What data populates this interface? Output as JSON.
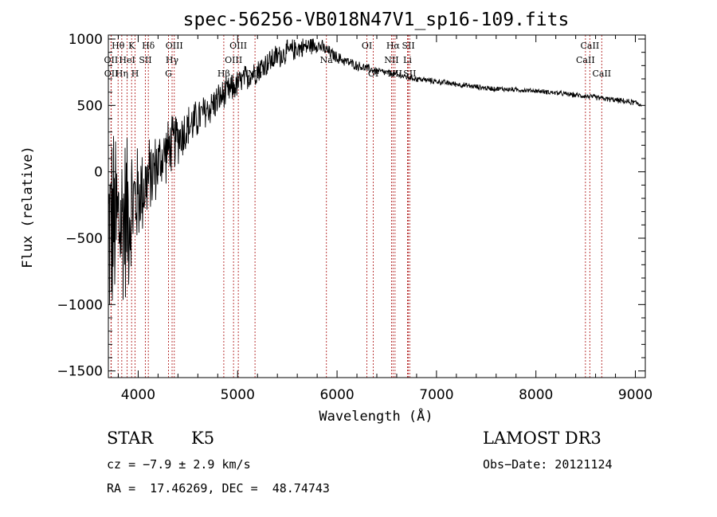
{
  "chart_data": {
    "type": "line",
    "title": "spec-56256-VB018N47V1_sp16-109.fits",
    "xlabel": "Wavelength (Å)",
    "ylabel": "Flux (relative)",
    "xlim": [
      3700,
      9100
    ],
    "ylim": [
      -1550,
      1030
    ],
    "xticks": [
      4000,
      5000,
      6000,
      7000,
      8000,
      9000
    ],
    "xtick_labels": [
      "4000",
      "5000",
      "6000",
      "7000",
      "8000",
      "9000"
    ],
    "yticks": [
      -1500,
      -1000,
      -500,
      0,
      500,
      1000
    ],
    "ytick_labels": [
      "−1500",
      "−1000",
      "−500",
      "0",
      "500",
      "1000"
    ],
    "continuum": {
      "x": [
        3700,
        3800,
        3900,
        4000,
        4100,
        4200,
        4300,
        4400,
        4600,
        4800,
        5000,
        5200,
        5400,
        5600,
        5800,
        5900,
        6000,
        6200,
        6400,
        6600,
        6800,
        7000,
        7500,
        8000,
        8500,
        9000,
        9100
      ],
      "y": [
        -450,
        -400,
        -300,
        -180,
        -60,
        60,
        170,
        260,
        400,
        540,
        660,
        770,
        870,
        930,
        960,
        910,
        860,
        800,
        760,
        730,
        700,
        680,
        630,
        610,
        570,
        520,
        500
      ]
    },
    "noise_envelope": {
      "x": [
        3700,
        3800,
        3900,
        4000,
        4200,
        4400,
        4600,
        5000,
        5400,
        5800,
        6000,
        6500,
        7000,
        8000,
        9000
      ],
      "amplitude": [
        900,
        850,
        700,
        420,
        280,
        230,
        170,
        120,
        110,
        70,
        50,
        30,
        25,
        20,
        25
      ]
    },
    "spectral_lines": [
      {
        "label": "Hθ",
        "wavelength": 3798,
        "row": 0
      },
      {
        "label": "OII",
        "wavelength": 3727,
        "row": 1
      },
      {
        "label": "OII",
        "wavelength": 3729,
        "row": 2
      },
      {
        "label": "Hη",
        "wavelength": 3835,
        "row": 2
      },
      {
        "label": "HeI",
        "wavelength": 3889,
        "row": 1
      },
      {
        "label": "K",
        "wavelength": 3934,
        "row": 0
      },
      {
        "label": "H",
        "wavelength": 3969,
        "row": 2
      },
      {
        "label": "SII",
        "wavelength": 4072,
        "row": 1
      },
      {
        "label": "Hδ",
        "wavelength": 4102,
        "row": 0
      },
      {
        "label": "OIII",
        "wavelength": 4363,
        "row": 0
      },
      {
        "label": "Hγ",
        "wavelength": 4341,
        "row": 1
      },
      {
        "label": "G",
        "wavelength": 4305,
        "row": 2
      },
      {
        "label": "Hβ",
        "wavelength": 4861,
        "row": 2
      },
      {
        "label": "OIII",
        "wavelength": 5007,
        "row": 0
      },
      {
        "label": "OIII",
        "wavelength": 4959,
        "row": 1
      },
      {
        "label": "Mg",
        "wavelength": 5175,
        "row": 2
      },
      {
        "label": "Na",
        "wavelength": 5893,
        "row": 1
      },
      {
        "label": "OI",
        "wavelength": 6300,
        "row": 0
      },
      {
        "label": "OI",
        "wavelength": 6364,
        "row": 2
      },
      {
        "label": "Hα",
        "wavelength": 6563,
        "row": 0
      },
      {
        "label": "NII",
        "wavelength": 6548,
        "row": 1
      },
      {
        "label": "NII",
        "wavelength": 6583,
        "row": 2
      },
      {
        "label": "SII",
        "wavelength": 6717,
        "row": 0
      },
      {
        "label": "Li",
        "wavelength": 6708,
        "row": 1
      },
      {
        "label": "SII",
        "wavelength": 6731,
        "row": 2
      },
      {
        "label": "CaII",
        "wavelength": 8542,
        "row": 0
      },
      {
        "label": "CaII",
        "wavelength": 8498,
        "row": 1
      },
      {
        "label": "CaII",
        "wavelength": 8662,
        "row": 2
      }
    ],
    "line_color": "#b22222"
  },
  "info": {
    "object_class": "STAR",
    "subclass": "K5",
    "survey": "LAMOST DR3",
    "cz": "cz = −7.9 ± 2.9 km/s",
    "obs_date": "Obs−Date: 20121124",
    "coords": "RA =  17.46269, DEC =  48.74743"
  }
}
